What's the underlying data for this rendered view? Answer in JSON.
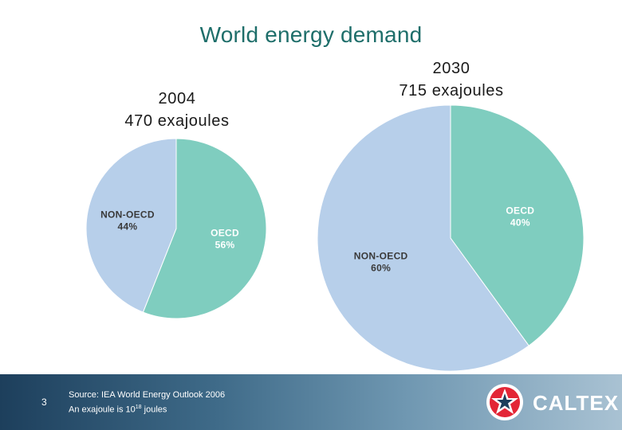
{
  "title": "World energy demand",
  "chart_data": [
    {
      "type": "pie",
      "title_lines": [
        "2004",
        "470 exajoules"
      ],
      "slices": [
        {
          "label": "OECD",
          "value": 56,
          "display": "56%",
          "color": "#7fcdbf"
        },
        {
          "label": "NON-OECD",
          "value": 44,
          "display": "44%",
          "color": "#b7cfea"
        }
      ]
    },
    {
      "type": "pie",
      "title_lines": [
        "2030",
        "715 exajoules"
      ],
      "slices": [
        {
          "label": "OECD",
          "value": 40,
          "display": "40%",
          "color": "#7fcdbf"
        },
        {
          "label": "NON-OECD",
          "value": 60,
          "display": "60%",
          "color": "#b7cfea"
        }
      ]
    }
  ],
  "footer": {
    "page_number": "3",
    "source_line1": "Source: IEA World Energy Outlook 2006",
    "source_line2_prefix": "An exajoule is 10",
    "source_line2_exp": "18",
    "source_line2_suffix": " joules",
    "logo_text": "CALTEX"
  },
  "colors": {
    "oecd": "#7fcdbf",
    "non_oecd": "#b7cfea",
    "title": "#1e6e6a",
    "logo_red": "#e32636"
  }
}
